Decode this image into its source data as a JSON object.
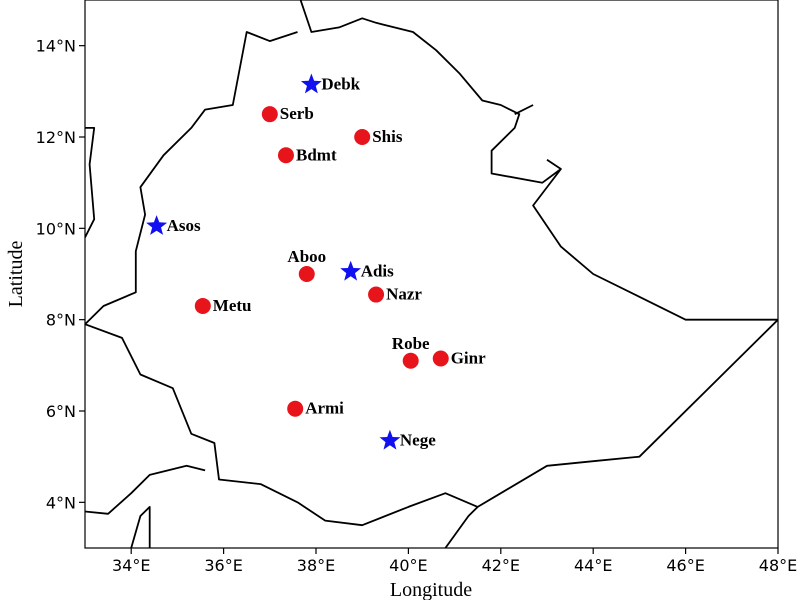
{
  "map": {
    "xlabel": "Longitude",
    "ylabel": "Latitude",
    "lon_range": [
      33.0,
      48.0
    ],
    "lat_range": [
      3.0,
      15.0
    ],
    "lon_ticks": [
      {
        "value": 34,
        "label": "34°E"
      },
      {
        "value": 36,
        "label": "36°E"
      },
      {
        "value": 38,
        "label": "38°E"
      },
      {
        "value": 40,
        "label": "40°E"
      },
      {
        "value": 42,
        "label": "42°E"
      },
      {
        "value": 44,
        "label": "44°E"
      },
      {
        "value": 46,
        "label": "46°E"
      },
      {
        "value": 48,
        "label": "48°E"
      }
    ],
    "lat_ticks": [
      {
        "value": 4,
        "label": "4°N"
      },
      {
        "value": 6,
        "label": "6°N"
      },
      {
        "value": 8,
        "label": "8°N"
      },
      {
        "value": 10,
        "label": "10°N"
      },
      {
        "value": 12,
        "label": "12°N"
      },
      {
        "value": 14,
        "label": "14°N"
      }
    ],
    "marker_colors": {
      "circle": "#e8141b",
      "star": "#1010f0"
    },
    "stations": [
      {
        "name": "Debk",
        "lon": 37.9,
        "lat": 13.15,
        "marker": "star",
        "label_pos": "right"
      },
      {
        "name": "Serb",
        "lon": 37.0,
        "lat": 12.5,
        "marker": "circle",
        "label_pos": "right"
      },
      {
        "name": "Shis",
        "lon": 39.0,
        "lat": 12.0,
        "marker": "circle",
        "label_pos": "right"
      },
      {
        "name": "Bdmt",
        "lon": 37.35,
        "lat": 11.6,
        "marker": "circle",
        "label_pos": "right"
      },
      {
        "name": "Asos",
        "lon": 34.55,
        "lat": 10.05,
        "marker": "star",
        "label_pos": "right"
      },
      {
        "name": "Aboo",
        "lon": 37.8,
        "lat": 9.0,
        "marker": "circle",
        "label_pos": "above"
      },
      {
        "name": "Adis",
        "lon": 38.75,
        "lat": 9.05,
        "marker": "star",
        "label_pos": "right"
      },
      {
        "name": "Nazr",
        "lon": 39.3,
        "lat": 8.55,
        "marker": "circle",
        "label_pos": "right"
      },
      {
        "name": "Metu",
        "lon": 35.55,
        "lat": 8.3,
        "marker": "circle",
        "label_pos": "right"
      },
      {
        "name": "Robe",
        "lon": 40.05,
        "lat": 7.1,
        "marker": "circle",
        "label_pos": "above"
      },
      {
        "name": "Ginr",
        "lon": 40.7,
        "lat": 7.15,
        "marker": "circle",
        "label_pos": "right"
      },
      {
        "name": "Armi",
        "lon": 37.55,
        "lat": 6.05,
        "marker": "circle",
        "label_pos": "right"
      },
      {
        "name": "Nege",
        "lon": 39.6,
        "lat": 5.35,
        "marker": "star",
        "label_pos": "right"
      }
    ],
    "borders": [
      [
        [
          37.6,
          15.2
        ],
        [
          37.9,
          14.3
        ],
        [
          38.5,
          14.4
        ],
        [
          39.0,
          14.6
        ],
        [
          39.3,
          14.5
        ],
        [
          40.1,
          14.3
        ],
        [
          40.6,
          13.9
        ],
        [
          41.1,
          13.4
        ],
        [
          41.6,
          12.8
        ],
        [
          42.0,
          12.7
        ],
        [
          42.4,
          12.5
        ],
        [
          42.3,
          12.2
        ],
        [
          41.8,
          11.7
        ],
        [
          41.8,
          11.2
        ],
        [
          42.9,
          11.0
        ],
        [
          43.3,
          11.3
        ],
        [
          42.7,
          10.5
        ],
        [
          43.3,
          9.6
        ],
        [
          44.0,
          9.0
        ],
        [
          45.0,
          8.5
        ],
        [
          46.0,
          8.0
        ],
        [
          48.0,
          8.0
        ],
        [
          45.0,
          5.0
        ],
        [
          44.0,
          4.9
        ],
        [
          43.0,
          4.8
        ],
        [
          42.0,
          4.2
        ],
        [
          41.5,
          3.9
        ],
        [
          40.8,
          4.2
        ],
        [
          40.0,
          3.9
        ],
        [
          39.0,
          3.5
        ],
        [
          38.2,
          3.6
        ],
        [
          37.6,
          4.0
        ],
        [
          36.8,
          4.4
        ],
        [
          35.9,
          4.5
        ],
        [
          35.8,
          5.3
        ],
        [
          35.3,
          5.5
        ],
        [
          34.9,
          6.5
        ],
        [
          34.2,
          6.8
        ],
        [
          33.8,
          7.6
        ],
        [
          33.0,
          7.9
        ],
        [
          33.4,
          8.3
        ],
        [
          34.1,
          8.6
        ],
        [
          34.1,
          9.5
        ],
        [
          34.3,
          10.3
        ],
        [
          34.2,
          10.9
        ],
        [
          34.7,
          11.6
        ],
        [
          35.3,
          12.2
        ],
        [
          35.6,
          12.6
        ],
        [
          36.2,
          12.7
        ],
        [
          36.5,
          14.3
        ],
        [
          37.0,
          14.1
        ],
        [
          37.6,
          14.3
        ]
      ],
      [
        [
          33.0,
          12.2
        ],
        [
          33.2,
          12.2
        ],
        [
          33.1,
          11.4
        ],
        [
          33.2,
          10.2
        ],
        [
          33.0,
          9.8
        ]
      ],
      [
        [
          42.3,
          12.5
        ],
        [
          42.7,
          12.7
        ]
      ],
      [
        [
          43.0,
          11.5
        ],
        [
          43.3,
          11.3
        ]
      ],
      [
        [
          33.0,
          3.8
        ],
        [
          33.5,
          3.75
        ],
        [
          34.0,
          4.2
        ],
        [
          34.4,
          4.6
        ],
        [
          35.2,
          4.8
        ],
        [
          35.6,
          4.7
        ]
      ],
      [
        [
          34.0,
          3.0
        ],
        [
          34.2,
          3.7
        ],
        [
          34.4,
          3.9
        ],
        [
          34.4,
          3.0
        ]
      ],
      [
        [
          40.8,
          3.0
        ],
        [
          41.3,
          3.7
        ],
        [
          41.5,
          3.9
        ]
      ]
    ]
  }
}
